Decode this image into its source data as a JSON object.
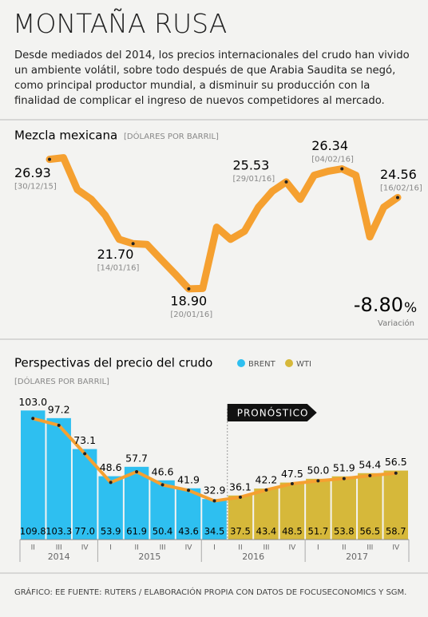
{
  "header": {
    "title": "MONTAÑA RUSA",
    "text": "Desde mediados del 2014, los precios internacionales del crudo han vivido un ambiente volátil, sobre todo después de que Arabia Saudita se negó, como principal productor mundial, a disminuir su producción con la finalidad de complicar el ingreso de nuevos competidores al mercado."
  },
  "chart_data": [
    {
      "type": "line",
      "title": "Mezcla mexicana",
      "subtitle": "[DÓLARES POR BARRIL]",
      "color": "#f5a030",
      "ylim": [
        18,
        28
      ],
      "values": [
        26.93,
        27.03,
        25.05,
        24.45,
        23.46,
        21.97,
        21.7,
        21.65,
        20.73,
        19.84,
        18.9,
        18.92,
        22.72,
        21.97,
        22.47,
        23.96,
        24.95,
        25.53,
        24.45,
        25.94,
        26.19,
        26.34,
        25.94,
        22.12,
        23.96,
        24.56
      ],
      "annotations": [
        {
          "index": 0,
          "label": "26.93",
          "date": "[30/12/15]"
        },
        {
          "index": 6,
          "label": "21.70",
          "date": "[14/01/16]"
        },
        {
          "index": 10,
          "label": "18.90",
          "date": "[20/01/16]"
        },
        {
          "index": 17,
          "label": "25.53",
          "date": "[29/01/16]"
        },
        {
          "index": 21,
          "label": "26.34",
          "date": "[04/02/16]"
        },
        {
          "index": 25,
          "label": "24.56",
          "date": "[16/02/16]"
        }
      ],
      "change": {
        "value": "-8.80",
        "unit": "%",
        "label": "Variación"
      }
    },
    {
      "type": "bar",
      "title": "Perspectivas del precio del crudo",
      "subtitle": "[DÓLARES POR BARRIL]",
      "categories": [
        "II",
        "III",
        "IV",
        "I",
        "II",
        "III",
        "IV",
        "I",
        "II",
        "III",
        "IV",
        "I",
        "II",
        "III",
        "IV"
      ],
      "year_groups": [
        {
          "label": "2014",
          "span": 3
        },
        {
          "label": "2015",
          "span": 4
        },
        {
          "label": "2016",
          "span": 4
        },
        {
          "label": "2017",
          "span": 4
        }
      ],
      "ylim": [
        0,
        110
      ],
      "forecast": {
        "label": "PRONÓSTICO",
        "start": 8,
        "color": "#d6b83a"
      },
      "line_color": "#f5a030",
      "series": [
        {
          "name": "BRENT",
          "color": "#2ebff0",
          "values": [
            109.8,
            103.3,
            77.0,
            53.9,
            61.9,
            50.4,
            43.6,
            34.5,
            37.5,
            43.4,
            48.5,
            51.7,
            53.8,
            56.5,
            58.7
          ],
          "value_labels": [
            "109.8",
            "103.3",
            "77.0",
            "53.9",
            "61.9",
            "50.4",
            "43.6",
            "34.5",
            "37.5",
            "43.4",
            "48.5",
            "51.7",
            "53.8",
            "56.5",
            "58.7"
          ]
        },
        {
          "name": "WTI",
          "color": "#d6b83a",
          "values": [
            103.0,
            97.2,
            73.1,
            48.6,
            57.7,
            46.6,
            41.9,
            32.9,
            36.1,
            42.2,
            47.5,
            50.0,
            51.9,
            54.4,
            56.5
          ],
          "value_labels": [
            "103.0",
            "97.2",
            "73.1",
            "48.6",
            "57.7",
            "46.6",
            "41.9",
            "32.9",
            "36.1",
            "42.2",
            "47.5",
            "50.0",
            "51.9",
            "54.4",
            "56.5"
          ]
        }
      ]
    }
  ],
  "footer": "GRÁFICO: EE FUENTE: RUTERS / ELABORACIÓN PROPIA CON DATOS DE FOCUSECONOMICS Y SGM."
}
